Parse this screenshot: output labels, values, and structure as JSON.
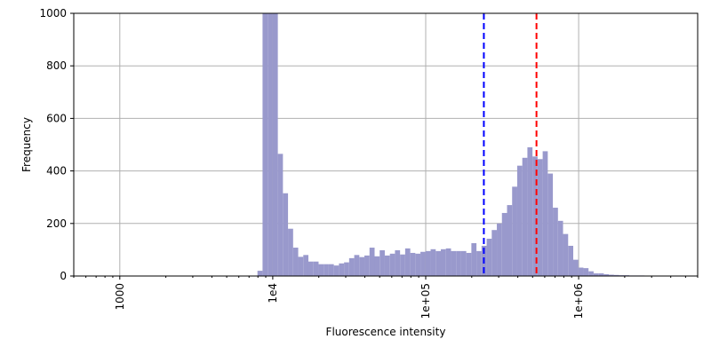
{
  "chart_data": {
    "type": "histogram",
    "xlabel": "Fluorescence intensity",
    "ylabel": "Frequency",
    "xscale": "log",
    "xlim": [
      500,
      6000000
    ],
    "ylim": [
      0,
      1000
    ],
    "grid": true,
    "bar_color": "#9999cc",
    "x_ticks": [
      {
        "value": 1000,
        "label": "1000"
      },
      {
        "value": 10000,
        "label": "1e4"
      },
      {
        "value": 100000,
        "label": "1e+05"
      },
      {
        "value": 1000000,
        "label": "1e+06"
      }
    ],
    "y_ticks": [
      {
        "value": 0,
        "label": "0"
      },
      {
        "value": 200,
        "label": "200"
      },
      {
        "value": 400,
        "label": "400"
      },
      {
        "value": 600,
        "label": "600"
      },
      {
        "value": 800,
        "label": "800"
      },
      {
        "value": 1000,
        "label": "1000"
      }
    ],
    "bins_log10": {
      "start": 3.9,
      "width": 0.0333
    },
    "counts": [
      20,
      1000,
      1000,
      1000,
      465,
      315,
      180,
      108,
      73,
      80,
      55,
      55,
      45,
      45,
      45,
      40,
      48,
      52,
      68,
      80,
      72,
      78,
      108,
      75,
      98,
      78,
      85,
      98,
      82,
      105,
      88,
      85,
      92,
      95,
      102,
      95,
      102,
      105,
      95,
      95,
      95,
      88,
      125,
      95,
      115,
      142,
      175,
      200,
      240,
      270,
      340,
      420,
      450,
      490,
      455,
      445,
      475,
      390,
      260,
      210,
      160,
      115,
      62,
      32,
      30,
      18,
      10,
      10,
      7,
      5,
      4,
      3,
      3,
      2,
      2,
      2,
      1,
      1
    ],
    "vlines": [
      {
        "x": 240000,
        "color": "#0000ff",
        "style": "dashed"
      },
      {
        "x": 530000,
        "color": "#ff0000",
        "style": "dashed"
      }
    ]
  }
}
